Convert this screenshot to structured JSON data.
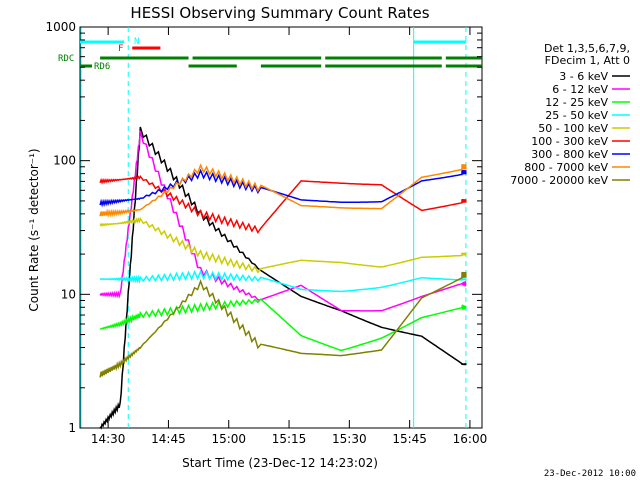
{
  "chart_data": {
    "type": "line",
    "title": "HESSI Observing Summary Count Rates",
    "xlabel": "Start Time (23-Dec-12 14:23:02)",
    "ylabel": "Count Rate (s⁻¹ detector⁻¹)",
    "y_scale": "log",
    "ylim": [
      1,
      1000
    ],
    "xlim_minutes": [
      0,
      100
    ],
    "x_ticks": [
      "14:30",
      "14:45",
      "15:00",
      "15:15",
      "15:30",
      "15:45",
      "16:00"
    ],
    "y_ticks": [
      "1",
      "10",
      "100",
      "1000"
    ],
    "legend_header": [
      "Det 1,3,5,6,7,9,",
      "FDecim 1, Att 0"
    ],
    "legend_position": "right",
    "timestamp": "23-Dec-2012 10:00",
    "flags": [
      {
        "name": "N",
        "color": "#00ffff",
        "segments": [
          [
            0,
            11
          ],
          [
            83,
            96
          ]
        ]
      },
      {
        "name": "F",
        "color": "#ff0000",
        "segments": [
          [
            13,
            20
          ]
        ]
      },
      {
        "name": "RDC",
        "color": "#008000",
        "segments": [
          [
            0,
            0
          ],
          [
            5,
            27
          ],
          [
            28,
            60
          ],
          [
            61,
            90
          ],
          [
            91,
            100
          ]
        ]
      },
      {
        "name": "RD6",
        "color": "#008000",
        "segments": []
      }
    ],
    "vlines_dashed": [
      12,
      96
    ],
    "vlines_solid": [
      0,
      83
    ],
    "series": [
      {
        "name": "3 - 6 keV",
        "color": "#000000",
        "values": [
          null,
          1,
          1.5,
          170,
          40,
          15,
          10,
          8,
          6,
          5,
          3
        ]
      },
      {
        "name": "6 - 12 keV",
        "color": "#ff00ff",
        "values": [
          null,
          10,
          10,
          160,
          15,
          9,
          12,
          8,
          8,
          10,
          12
        ]
      },
      {
        "name": "12 - 25 keV",
        "color": "#00ff00",
        "values": [
          null,
          5.5,
          6,
          7,
          8,
          9,
          5,
          4,
          5,
          7,
          8
        ]
      },
      {
        "name": "25 - 50 keV",
        "color": "#00ffff",
        "values": [
          null,
          13,
          13,
          13,
          14,
          13,
          11,
          11,
          12,
          14,
          13
        ]
      },
      {
        "name": "50 - 100 keV",
        "color": "#cccc00",
        "values": [
          null,
          33,
          34,
          36,
          20,
          15,
          18,
          18,
          17,
          20,
          20
        ]
      },
      {
        "name": "100 - 300 keV",
        "color": "#ff0000",
        "values": [
          null,
          70,
          72,
          75,
          40,
          30,
          70,
          70,
          70,
          45,
          50
        ]
      },
      {
        "name": "300 - 800 keV",
        "color": "#0000ff",
        "values": [
          null,
          48,
          50,
          52,
          80,
          60,
          50,
          50,
          52,
          75,
          82
        ]
      },
      {
        "name": "800 - 7000 keV",
        "color": "#ff8800",
        "values": [
          null,
          40,
          41,
          43,
          88,
          62,
          45,
          45,
          46,
          80,
          90
        ]
      },
      {
        "name": "7000 - 20000 keV",
        "color": "#808000",
        "values": [
          null,
          2.5,
          3,
          4,
          12,
          4,
          3.5,
          3.5,
          4,
          10,
          14
        ]
      }
    ],
    "x_minutes": [
      0,
      5,
      10,
      15,
      30,
      45,
      55,
      65,
      75,
      85,
      95
    ]
  }
}
